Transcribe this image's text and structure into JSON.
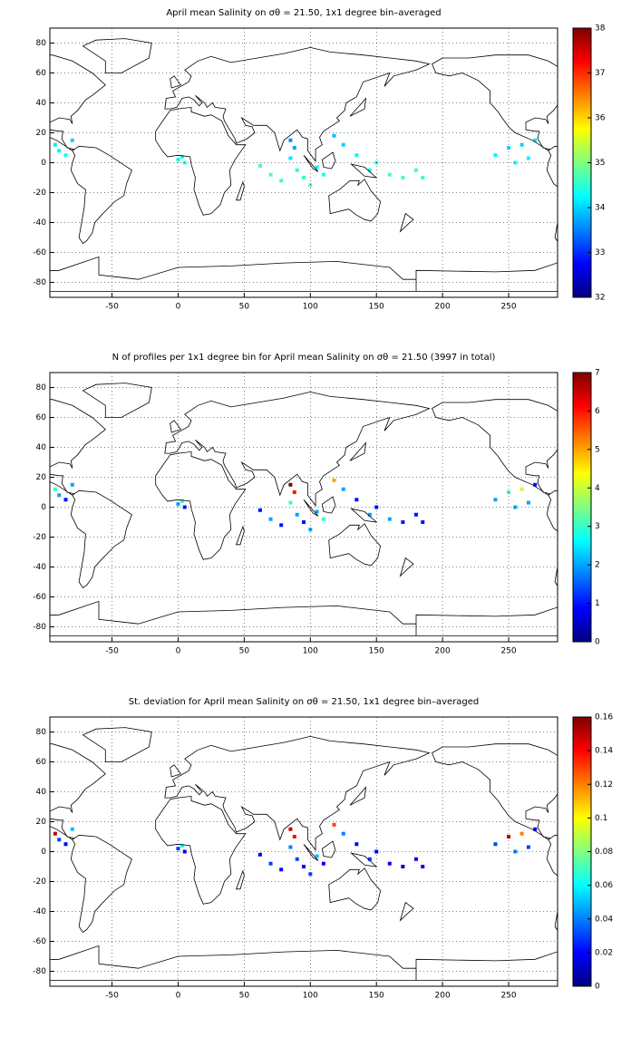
{
  "chart_data": [
    {
      "type": "map",
      "title": "April mean Salinity on σθ = 21.50, 1x1 degree bin–averaged",
      "colormap": "jet",
      "grid": true,
      "xlim": [
        -97,
        287
      ],
      "ylim": [
        -90,
        90
      ],
      "xticks": [
        -50,
        0,
        50,
        100,
        150,
        200,
        250
      ],
      "yticks": [
        -80,
        -60,
        -40,
        -20,
        0,
        20,
        40,
        60,
        80
      ],
      "clim": [
        32,
        38
      ],
      "cticks": [
        32,
        33,
        34,
        35,
        36,
        37,
        38
      ],
      "x": [
        -93,
        -90,
        -85,
        -80,
        0,
        3,
        5,
        62,
        70,
        78,
        85,
        88,
        85,
        90,
        95,
        100,
        105,
        110,
        118,
        125,
        135,
        145,
        150,
        160,
        170,
        180,
        185,
        240,
        250,
        255,
        260,
        265,
        270
      ],
      "y": [
        12,
        8,
        5,
        15,
        2,
        4,
        0,
        -2,
        -8,
        -12,
        15,
        10,
        3,
        -5,
        -10,
        -15,
        -3,
        -8,
        18,
        12,
        5,
        -5,
        0,
        -8,
        -10,
        -5,
        -10,
        5,
        10,
        0,
        12,
        3,
        15
      ],
      "values": [
        34.1,
        34.2,
        34.3,
        34.0,
        34.4,
        34.3,
        34.5,
        34.6,
        34.7,
        34.6,
        33.6,
        33.7,
        34.1,
        34.5,
        34.6,
        34.7,
        34.2,
        34.4,
        33.9,
        34.0,
        34.2,
        34.3,
        34.4,
        34.6,
        34.7,
        34.6,
        34.6,
        34.2,
        34.1,
        34.3,
        34.0,
        34.2,
        34.1
      ]
    },
    {
      "type": "map",
      "title": "N of profiles per 1x1 degree bin for April mean Salinity on σθ = 21.50 (3997 in total)",
      "colormap": "jet",
      "grid": true,
      "xlim": [
        -97,
        287
      ],
      "ylim": [
        -90,
        90
      ],
      "xticks": [
        -50,
        0,
        50,
        100,
        150,
        200,
        250
      ],
      "yticks": [
        -80,
        -60,
        -40,
        -20,
        0,
        20,
        40,
        60,
        80
      ],
      "clim": [
        0,
        7
      ],
      "cticks": [
        0,
        1,
        2,
        3,
        4,
        5,
        6,
        7
      ],
      "x": [
        -93,
        -90,
        -85,
        -80,
        0,
        3,
        5,
        62,
        70,
        78,
        85,
        88,
        85,
        90,
        95,
        100,
        105,
        110,
        118,
        125,
        135,
        145,
        150,
        160,
        170,
        180,
        185,
        240,
        250,
        255,
        260,
        265,
        270
      ],
      "y": [
        12,
        8,
        5,
        15,
        2,
        4,
        0,
        -2,
        -8,
        -12,
        15,
        10,
        3,
        -5,
        -10,
        -15,
        -3,
        -8,
        18,
        12,
        5,
        -5,
        0,
        -8,
        -10,
        -5,
        -10,
        5,
        10,
        0,
        12,
        3,
        15
      ],
      "values": [
        3,
        2,
        1,
        2,
        2,
        3,
        1,
        1,
        2,
        1,
        7,
        6,
        3,
        2,
        1,
        2,
        2,
        3,
        5,
        2,
        1,
        2,
        1,
        2,
        1,
        1,
        1,
        2,
        3,
        2,
        4,
        2,
        1
      ]
    },
    {
      "type": "map",
      "title": "St. deviation for April mean Salinity on σθ = 21.50, 1x1 degree bin–averaged",
      "colormap": "jet",
      "grid": true,
      "xlim": [
        -97,
        287
      ],
      "ylim": [
        -90,
        90
      ],
      "xticks": [
        -50,
        0,
        50,
        100,
        150,
        200,
        250
      ],
      "yticks": [
        -80,
        -60,
        -40,
        -20,
        0,
        20,
        40,
        60,
        80
      ],
      "clim": [
        0,
        0.16
      ],
      "cticks": [
        0,
        0.02,
        0.04,
        0.06,
        0.08,
        0.1,
        0.12,
        0.14,
        0.16
      ],
      "x": [
        -93,
        -90,
        -85,
        -80,
        0,
        3,
        5,
        62,
        70,
        78,
        85,
        88,
        85,
        90,
        95,
        100,
        105,
        110,
        118,
        125,
        135,
        145,
        150,
        160,
        170,
        180,
        185,
        240,
        250,
        255,
        260,
        265,
        270
      ],
      "y": [
        12,
        8,
        5,
        15,
        2,
        4,
        0,
        -2,
        -8,
        -12,
        15,
        10,
        3,
        -5,
        -10,
        -15,
        -3,
        -8,
        18,
        12,
        5,
        -5,
        0,
        -8,
        -10,
        -5,
        -10,
        5,
        10,
        0,
        12,
        3,
        15
      ],
      "values": [
        0.15,
        0.03,
        0.02,
        0.05,
        0.03,
        0.06,
        0.02,
        0.02,
        0.03,
        0.02,
        0.15,
        0.14,
        0.04,
        0.03,
        0.02,
        0.03,
        0.05,
        0.02,
        0.13,
        0.04,
        0.02,
        0.03,
        0.02,
        0.02,
        0.01,
        0.02,
        0.02,
        0.03,
        0.15,
        0.04,
        0.12,
        0.03,
        0.02
      ]
    }
  ]
}
